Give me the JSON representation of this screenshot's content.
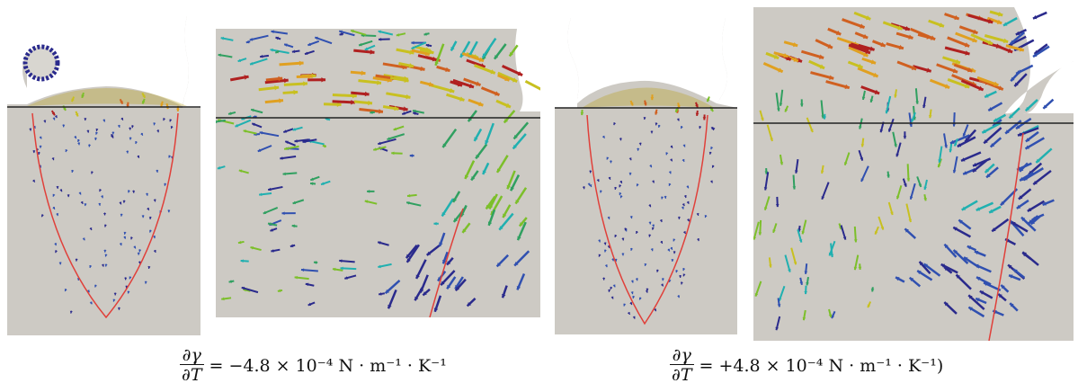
{
  "captions": [
    {
      "frac_num": "∂γ",
      "frac_den": "∂T",
      "rhs": "= −4.8 × 10⁻⁴ N · m⁻¹ · K⁻¹"
    },
    {
      "frac_num": "∂γ",
      "frac_den": "∂T",
      "rhs": "= +4.8 × 10⁻⁴ N · m⁻¹ · K⁻¹)"
    }
  ],
  "colors": {
    "background": "#cdcac4",
    "melt_pool_boundary": "#e0403a",
    "reference_line": "#222222",
    "cold": "#2a2a8c",
    "cool": "#20b0b0",
    "mid": "#7cbf2a",
    "warm": "#e0c020",
    "hot": "#b02020"
  }
}
